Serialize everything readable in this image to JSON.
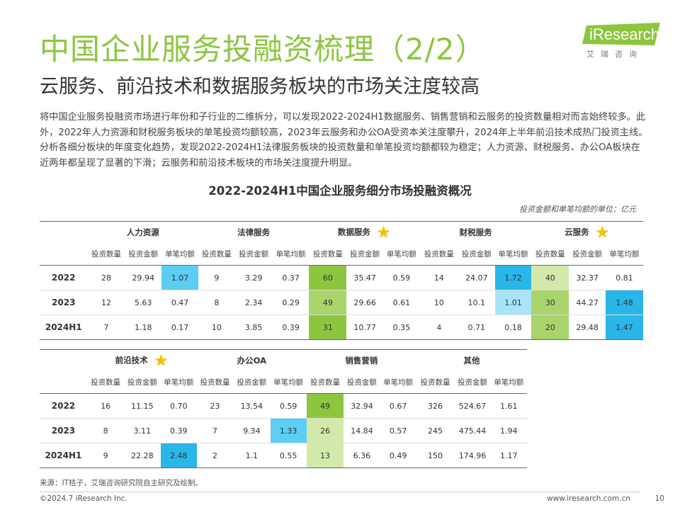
{
  "header": {
    "title": "中国企业服务投融资梳理（2/2）",
    "subtitle": "云服务、前沿技术和数据服务板块的市场关注度较高",
    "logo_text": "iResearch",
    "logo_cn": "艾瑞咨询"
  },
  "paragraph": "将中国企业服务投融资市场进行年份和子行业的二维拆分，可以发现2022-2024H1数据服务、销售营销和云服务的投资数量相对而言始终较多。此外，2022年人力资源和财税服务板块的单笔投资均额较高，2023年云服务和办公OA受资本关注度攀升，2024年上半年前沿技术成热门投资主线。分析各细分板块的年度变化趋势，发现2022-2024H1法律服务板块的投资数量和单笔投资均额都较为稳定；人力资源、财税服务、办公OA板块在近两年都呈现了显著的下滑；云服务和前沿技术板块的市场关注度提升明显。",
  "table_title": "2022-2024H1中国企业服务细分市场投融资概况",
  "unit_note": "投资金额和单笔均额的单位：亿元",
  "metrics": [
    "投资数量",
    "投资金额",
    "单笔均额"
  ],
  "table1": {
    "categories": [
      "人力资源",
      "法律服务",
      "数据服务",
      "财税服务",
      "云服务"
    ],
    "starred": [
      false,
      false,
      true,
      false,
      true
    ],
    "rows": [
      {
        "year": "2022",
        "values": [
          "28",
          "29.94",
          "1.07",
          "9",
          "3.29",
          "0.37",
          "60",
          "35.47",
          "0.59",
          "14",
          "24.07",
          "1.72",
          "40",
          "32.37",
          "0.81"
        ]
      },
      {
        "year": "2023",
        "values": [
          "12",
          "5.63",
          "0.47",
          "8",
          "2.34",
          "0.29",
          "49",
          "29.66",
          "0.61",
          "10",
          "10.1",
          "1.01",
          "30",
          "44.27",
          "1.48"
        ]
      },
      {
        "year": "2024H1",
        "values": [
          "7",
          "1.18",
          "0.17",
          "10",
          "3.85",
          "0.39",
          "31",
          "10.77",
          "0.35",
          "4",
          "0.71",
          "0.18",
          "20",
          "29.48",
          "1.47"
        ]
      }
    ]
  },
  "table2": {
    "categories": [
      "前沿技术",
      "办公OA",
      "销售营销",
      "其他"
    ],
    "starred": [
      true,
      false,
      false,
      false
    ],
    "rows": [
      {
        "year": "2022",
        "values": [
          "16",
          "11.15",
          "0.70",
          "23",
          "13.54",
          "0.59",
          "49",
          "32.94",
          "0.67",
          "326",
          "524.67",
          "1.61"
        ]
      },
      {
        "year": "2023",
        "values": [
          "8",
          "3.11",
          "0.39",
          "7",
          "9.34",
          "1.33",
          "26",
          "14.84",
          "0.57",
          "245",
          "475.44",
          "1.94"
        ]
      },
      {
        "year": "2024H1",
        "values": [
          "9",
          "22.28",
          "2.48",
          "2",
          "1.1",
          "0.55",
          "13",
          "6.36",
          "0.49",
          "150",
          "174.96",
          "1.17"
        ]
      }
    ]
  },
  "highlight_colors": {
    "green_dark": "#8cc63f",
    "green_mid": "#a9d46b",
    "green_light": "#d2e9a9",
    "blue_dark": "#29b6e8",
    "blue_mid": "#5ccdf3",
    "blue_light": "#a8e4f8"
  },
  "footer": {
    "source": "来源：IT桔子，艾瑞咨询研究院自主研究及绘制。",
    "copyright": "©2024.7 iResearch Inc.",
    "website": "www.iresearch.com.cn",
    "page": "10"
  }
}
